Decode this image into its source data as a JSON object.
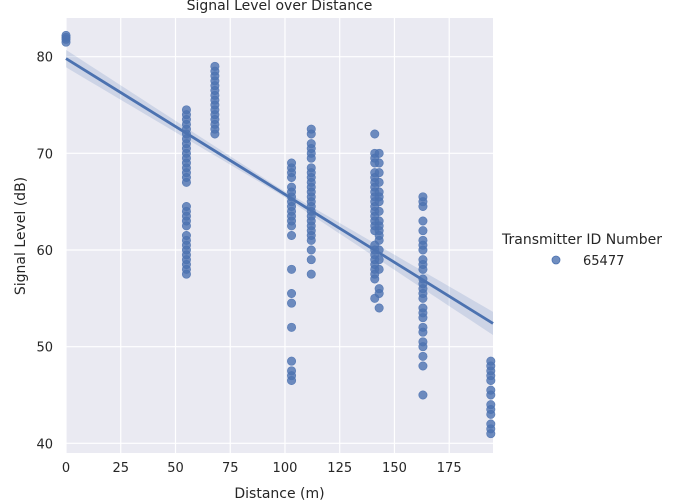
{
  "chart_data": {
    "type": "scatter",
    "title": "Signal Level over Distance",
    "xlabel": "Distance (m)",
    "ylabel": "Signal Level (dB)",
    "xlim": [
      0,
      195
    ],
    "ylim": [
      39,
      84
    ],
    "xticks": [
      0,
      25,
      50,
      75,
      100,
      125,
      150,
      175
    ],
    "yticks": [
      40,
      50,
      60,
      70,
      80
    ],
    "grid": true,
    "background_color": "#eaeaf2",
    "grid_color": "#ffffff",
    "series_color": "#4c72b0",
    "legend": {
      "title": "Transmitter ID Number",
      "placement": "right",
      "entries": [
        "65477"
      ]
    },
    "regression": {
      "slope": -0.1405,
      "intercept": 79.8,
      "ci_halfwidth_start": 0.9,
      "ci_halfwidth_mid": 0.3,
      "ci_halfwidth_end": 1.2
    },
    "series": [
      {
        "name": "65477",
        "clusters": [
          {
            "x": 0,
            "y": [
              81.5,
              81.8,
              82.0,
              82.2
            ]
          },
          {
            "x": 55,
            "y": [
              57.5,
              58.0,
              58.5,
              59.0,
              59.5,
              60.0,
              60.5,
              61.0,
              61.5,
              62.5,
              63.0,
              63.5,
              64.0,
              64.5,
              67.0,
              67.5,
              68.0,
              68.5,
              69.0,
              69.5,
              70.0,
              70.5,
              71.0,
              71.5,
              72.0,
              72.5,
              73.0,
              73.5,
              74.0,
              74.5
            ]
          },
          {
            "x": 68,
            "y": [
              72.0,
              72.5,
              73.0,
              73.5,
              74.0,
              74.5,
              75.0,
              75.5,
              76.0,
              76.5,
              77.0,
              77.5,
              78.0,
              78.5,
              79.0
            ]
          },
          {
            "x": 103,
            "y": [
              46.5,
              47.0,
              47.5,
              48.5,
              52.0,
              54.5,
              55.5,
              58.0,
              61.5,
              62.5,
              63.0,
              63.5,
              64.0,
              64.5,
              65.0,
              65.5,
              66.0,
              66.5,
              67.5,
              68.0,
              68.5,
              69.0
            ]
          },
          {
            "x": 112,
            "y": [
              57.5,
              59.0,
              60.0,
              61.0,
              61.5,
              62.0,
              62.5,
              63.0,
              63.5,
              64.0,
              64.5,
              65.0,
              65.5,
              66.0,
              66.5,
              67.0,
              67.5,
              68.0,
              68.5,
              69.5,
              70.0,
              70.5,
              71.0,
              72.0,
              72.5
            ]
          },
          {
            "x": 141,
            "y": [
              55.0,
              57.0,
              57.5,
              58.0,
              58.5,
              59.0,
              59.5,
              60.0,
              60.5,
              62.0,
              62.5,
              63.0,
              63.5,
              64.0,
              64.5,
              65.0,
              65.5,
              66.0,
              66.5,
              67.0,
              67.5,
              68.0,
              69.0,
              69.5,
              70.0,
              72.0
            ]
          },
          {
            "x": 143,
            "y": [
              54.0,
              55.5,
              56.0,
              58.0,
              59.0,
              60.0,
              61.0,
              61.5,
              62.0,
              62.5,
              63.0,
              64.0,
              65.0,
              65.5,
              66.0,
              67.0,
              68.0,
              69.0,
              70.0
            ]
          },
          {
            "x": 163,
            "y": [
              45.0,
              48.0,
              49.0,
              50.0,
              50.5,
              51.5,
              52.0,
              53.0,
              53.5,
              54.0,
              55.0,
              55.5,
              56.0,
              56.5,
              57.0,
              58.0,
              58.5,
              59.0,
              60.0,
              60.5,
              61.0,
              62.0,
              63.0,
              64.5,
              65.0,
              65.5
            ]
          },
          {
            "x": 194,
            "y": [
              41.0,
              41.5,
              42.0,
              43.0,
              43.5,
              44.0,
              45.0,
              45.5,
              46.5,
              47.0,
              47.5,
              48.0,
              48.5
            ]
          }
        ]
      }
    ]
  }
}
